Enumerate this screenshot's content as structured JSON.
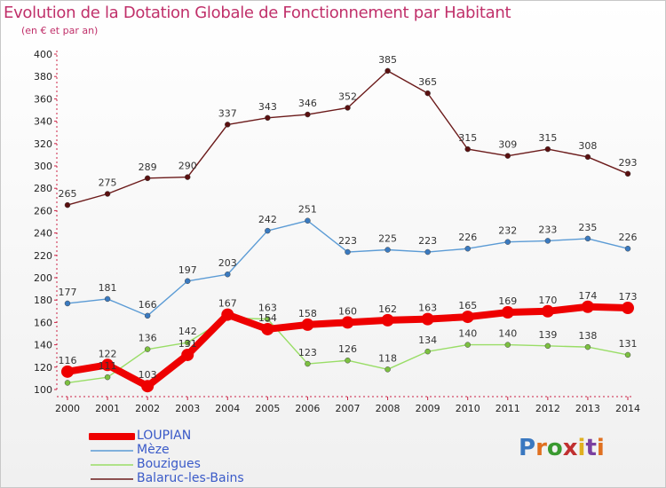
{
  "title": "Evolution de la Dotation Globale de Fonctionnement par Habitant",
  "subtitle": "(en € et par an)",
  "logo": {
    "text": "Proxiti",
    "letter_colors": [
      "#3a78c0",
      "#e07020",
      "#3a9a30",
      "#c03030",
      "#e0b020",
      "#7a40a0",
      "#e07020"
    ]
  },
  "chart_data": {
    "type": "line",
    "title": "Evolution de la Dotation Globale de Fonctionnement par Habitant",
    "subtitle": "(en € et par an)",
    "x": [
      2000,
      2001,
      2002,
      2003,
      2004,
      2005,
      2006,
      2007,
      2008,
      2009,
      2010,
      2011,
      2012,
      2013,
      2014
    ],
    "ylim": [
      100,
      400
    ],
    "yticks": [
      100,
      120,
      140,
      160,
      180,
      200,
      220,
      240,
      260,
      280,
      300,
      320,
      340,
      360,
      380,
      400
    ],
    "grid": false,
    "legend_position": "bottom-left",
    "series": [
      {
        "name": "Balaruc-les-Bains",
        "color": "#6b1a1a",
        "marker": "#5a1010",
        "values": [
          265,
          275,
          289,
          290,
          337,
          343,
          346,
          352,
          385,
          365,
          315,
          309,
          315,
          308,
          293
        ],
        "labels_visible": true
      },
      {
        "name": "Mèze",
        "color": "#5b9bd5",
        "marker": "#3a7ac0",
        "values": [
          177,
          181,
          166,
          197,
          203,
          242,
          251,
          223,
          225,
          223,
          226,
          232,
          233,
          235,
          226
        ],
        "labels_visible": true
      },
      {
        "name": "Bouzigues",
        "color": "#99dd66",
        "marker": "#7cc040",
        "values": [
          106,
          111,
          136,
          142,
          164,
          163,
          123,
          126,
          118,
          134,
          140,
          140,
          139,
          138,
          131
        ],
        "labels_visible": [
          false,
          true,
          true,
          true,
          false,
          true,
          true,
          true,
          true,
          true,
          true,
          true,
          true,
          true,
          true
        ]
      },
      {
        "name": "LOUPIAN",
        "color": "#ee0000",
        "marker": "#ee0000",
        "values": [
          116,
          122,
          103,
          131,
          167,
          154,
          158,
          160,
          162,
          163,
          165,
          169,
          170,
          174,
          173
        ],
        "labels_visible": true
      }
    ],
    "legend": [
      "LOUPIAN",
      "Mèze",
      "Bouzigues",
      "Balaruc-les-Bains"
    ]
  }
}
